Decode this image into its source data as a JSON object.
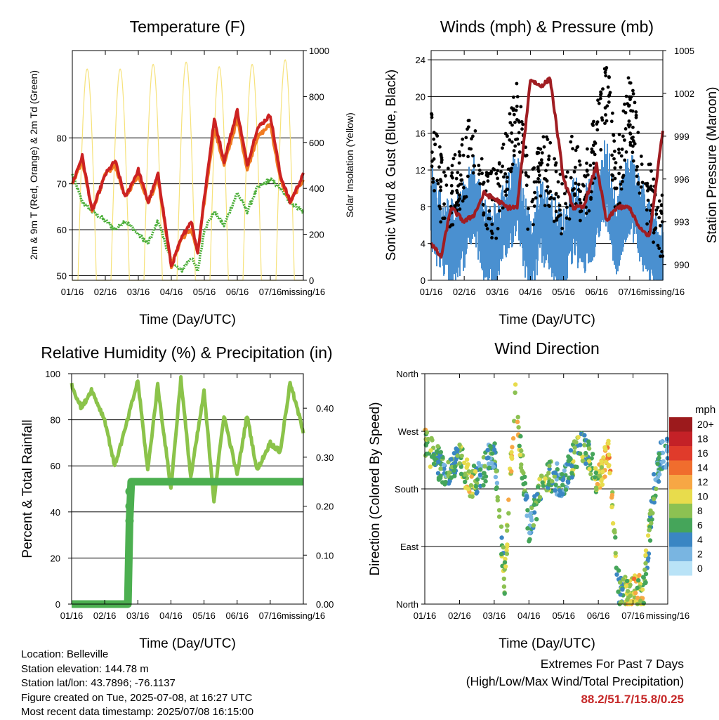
{
  "panels": {
    "temperature": {
      "title": "Temperature (F)",
      "ylabel_left": "2m & 9m T (Red, Orange) & 2m Td (Green)",
      "ylabel_right": "Solar Insolation (Yellow)",
      "xlabel": "Time (Day/UTC)"
    },
    "winds": {
      "title": "Winds (mph) & Pressure (mb)",
      "ylabel_left": "Sonic Wind & Gust (Blue, Black)",
      "ylabel_right": "Station Pressure (Maroon)",
      "xlabel": "Time (Day/UTC)"
    },
    "humidity": {
      "title": "Relative Humidity (%) & Precipitation (in)",
      "ylabel_left": "Percent & Total Rainfall",
      "xlabel": "Time (Day/UTC)"
    },
    "direction": {
      "title": "Wind Direction",
      "ylabel_left": "Direction (Colored By Speed)",
      "xlabel": "Time (Day/UTC)"
    }
  },
  "legend": {
    "unit": "mph",
    "labels": [
      "20+",
      "18",
      "16",
      "14",
      "12",
      "10",
      "8",
      "6",
      "4",
      "2",
      "0"
    ],
    "colors": [
      "#9c1a1c",
      "#c42127",
      "#e03b2b",
      "#f06d2d",
      "#f7a744",
      "#e8dc4c",
      "#8cc152",
      "#45a55a",
      "#3a86c3",
      "#79b5e1",
      "#b9e3f7"
    ]
  },
  "info": {
    "location": "Location: Belleville",
    "elevation": "Station elevation: 144.78 m",
    "latlon": "Station lat/lon: 43.7896; -76.1137",
    "created": "Figure created on Tue, 2025-07-08, at 16:27 UTC",
    "recent": "Most recent data timestamp: 2025/07/08 16:15:00"
  },
  "extremes": {
    "line1": "Extremes For Past 7 Days",
    "line2": "(High/Low/Max Wind/Total Precipitation)",
    "values": "88.2/51.7/15.8/0.25"
  },
  "chart_data": [
    {
      "type": "line",
      "title": "Temperature (F)",
      "xlabel": "Time (Day/UTC)",
      "ylabel": "2m & 9m T (Red, Orange) & 2m Td (Green)",
      "y2label": "Solar Insolation (Yellow)",
      "x_ticks": [
        "01/16",
        "02/16",
        "03/16",
        "04/16",
        "05/16",
        "06/16",
        "07/16",
        "missing/16"
      ],
      "ylim": [
        49,
        99
      ],
      "y_ticks": [
        50,
        60,
        70,
        80
      ],
      "y2lim": [
        0,
        1000
      ],
      "y2_ticks": [
        0,
        200,
        400,
        600,
        800,
        1000
      ],
      "x_day": [
        0,
        0.3,
        0.6,
        1.0,
        1.3,
        1.6,
        2.0,
        2.3,
        2.6,
        3.0,
        3.3,
        3.6,
        3.8,
        4.0,
        4.3,
        4.6,
        5.0,
        5.3,
        5.6,
        6.0,
        6.3,
        6.6,
        7.0
      ],
      "series": [
        {
          "name": "2m T (Red)",
          "color": "#cc2222",
          "values": [
            70,
            76,
            64,
            72,
            75,
            67,
            73,
            66,
            72,
            52,
            58,
            62,
            55,
            67,
            84,
            75,
            86,
            74,
            82,
            85,
            72,
            66,
            72
          ]
        },
        {
          "name": "9m T (Orange)",
          "color": "#f07b22",
          "values": [
            70,
            75,
            64,
            72,
            74,
            67,
            72,
            66,
            71,
            52,
            58,
            60,
            55,
            66,
            82,
            74,
            84,
            73,
            80,
            83,
            71,
            66,
            71
          ]
        },
        {
          "name": "2m Td (Green)",
          "color": "#4caf3a",
          "values": [
            72,
            66,
            64,
            62,
            60,
            62,
            59,
            57,
            62,
            53,
            51,
            54,
            51,
            60,
            64,
            61,
            68,
            64,
            69,
            71,
            69,
            66,
            64
          ]
        },
        {
          "name": "Solar Insolation (Yellow)",
          "axis": "right",
          "color": "#f6e27a",
          "peaks": [
            920,
            920,
            940,
            950,
            930,
            940,
            960
          ]
        }
      ]
    },
    {
      "type": "scatter",
      "title": "Winds (mph) & Pressure (mb)",
      "xlabel": "Time (Day/UTC)",
      "ylabel": "Sonic Wind & Gust (Blue, Black)",
      "y2label": "Station Pressure (Maroon)",
      "x_ticks": [
        "01/16",
        "02/16",
        "03/16",
        "04/16",
        "05/16",
        "06/16",
        "07/16",
        "missing/16"
      ],
      "ylim": [
        0,
        25
      ],
      "y_ticks": [
        0,
        4,
        8,
        12,
        16,
        20,
        24
      ],
      "y2lim": [
        988.9,
        1005
      ],
      "y2_ticks": [
        990,
        993,
        996,
        999,
        1002,
        1005
      ],
      "x_day": [
        0,
        0.3,
        0.6,
        1.0,
        1.3,
        1.6,
        2.0,
        2.3,
        2.6,
        3.0,
        3.3,
        3.6,
        4.0,
        4.3,
        4.6,
        5.0,
        5.3,
        5.6,
        6.0,
        6.3,
        6.6,
        7.0
      ],
      "series": [
        {
          "name": "Gust (Black)",
          "color": "#000000",
          "values": [
            15,
            10,
            9,
            12,
            16,
            9,
            8,
            13,
            19,
            7,
            13,
            11,
            7,
            13,
            9,
            15,
            21,
            10,
            19,
            13,
            9,
            6
          ]
        },
        {
          "name": "Sonic Wind (Blue)",
          "color": "#4a90d0",
          "values": [
            9,
            6,
            5,
            7,
            10,
            5,
            5,
            8,
            11,
            3,
            8,
            6,
            4,
            8,
            6,
            9,
            12,
            6,
            11,
            8,
            5,
            3
          ]
        },
        {
          "name": "Station Pressure (Maroon)",
          "axis": "right",
          "color": "#a01d22",
          "values": [
            991.5,
            990.5,
            994,
            993,
            993.5,
            995,
            994.5,
            994,
            994,
            1003,
            1002.5,
            1003,
            996,
            994,
            994,
            997,
            993,
            994,
            994,
            992.5,
            992,
            999.5
          ]
        }
      ]
    },
    {
      "type": "line",
      "title": "Relative Humidity (%) & Precipitation (in)",
      "xlabel": "Time (Day/UTC)",
      "ylabel": "Percent & Total Rainfall",
      "x_ticks": [
        "01/16",
        "02/16",
        "03/16",
        "04/16",
        "05/16",
        "06/16",
        "07/16",
        "missing/16"
      ],
      "ylim": [
        0,
        100
      ],
      "y_ticks": [
        0,
        20,
        40,
        60,
        80,
        100
      ],
      "y2lim": [
        0,
        0.4705
      ],
      "y2_ticks": [
        0.0,
        0.1,
        0.2,
        0.3,
        0.4
      ],
      "x_day": [
        0,
        0.3,
        0.6,
        1.0,
        1.3,
        1.6,
        2.0,
        2.3,
        2.6,
        3.0,
        3.3,
        3.6,
        4.0,
        4.3,
        4.6,
        5.0,
        5.3,
        5.6,
        6.0,
        6.3,
        6.6,
        7.0
      ],
      "series": [
        {
          "name": "RH (%)",
          "color": "#8bc34a",
          "values": [
            95,
            85,
            93,
            80,
            60,
            75,
            97,
            58,
            95,
            50,
            98,
            55,
            92,
            45,
            82,
            56,
            82,
            58,
            70,
            66,
            96,
            75
          ]
        },
        {
          "name": "Total Rainfall (in)",
          "axis": "right",
          "color": "#4caf50",
          "x_day": [
            0,
            1.7,
            1.75,
            1.8,
            7.0
          ],
          "values": [
            0.0,
            0.0,
            0.17,
            0.25,
            0.25
          ]
        }
      ]
    },
    {
      "type": "scatter",
      "title": "Wind Direction",
      "xlabel": "Time (Day/UTC)",
      "ylabel": "Direction (Colored By Speed)",
      "x_ticks": [
        "01/16",
        "02/16",
        "03/16",
        "04/16",
        "05/16",
        "06/16",
        "07/16",
        "missing/16"
      ],
      "y_ticks": [
        "North",
        "East",
        "South",
        "West",
        "North"
      ],
      "ylim": [
        0,
        360
      ],
      "x_day": [
        0,
        0.3,
        0.6,
        1.0,
        1.3,
        1.6,
        2.0,
        2.3,
        2.6,
        2.8,
        3.0,
        3.3,
        3.6,
        4.0,
        4.3,
        4.6,
        5.0,
        5.3,
        5.6,
        6.0,
        6.3,
        6.6,
        6.8,
        7.0
      ],
      "series": [
        {
          "name": "Direction (deg)",
          "values": [
            250,
            230,
            200,
            230,
            190,
            200,
            240,
            40,
            330,
            220,
            120,
            170,
            200,
            190,
            230,
            250,
            190,
            240,
            20,
            20,
            20,
            180,
            230,
            240
          ]
        }
      ]
    }
  ]
}
